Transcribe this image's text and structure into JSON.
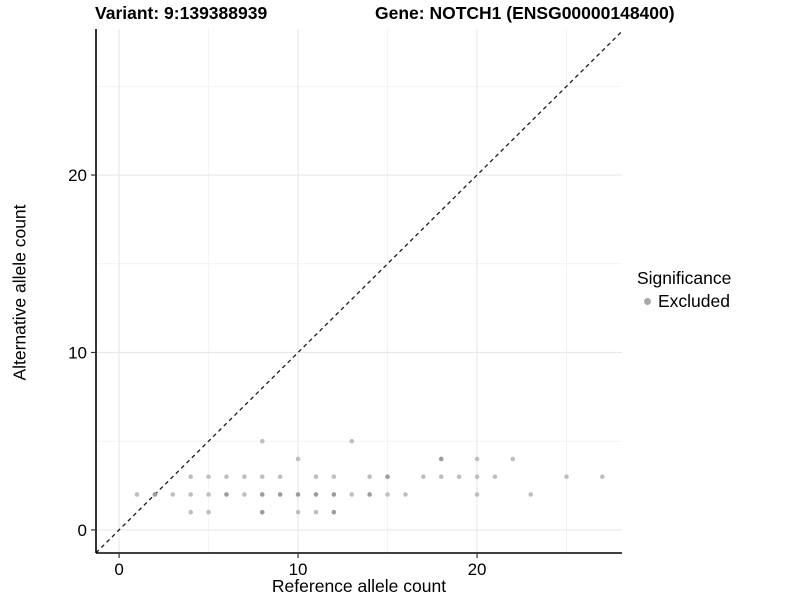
{
  "chart_data": {
    "type": "scatter",
    "titles": {
      "left": "Variant: 9:139388939",
      "right": "Gene: NOTCH1 (ENSG00000148400)"
    },
    "xlabel": "Reference allele count",
    "ylabel": "Alternative allele count",
    "xlim": [
      -1.29,
      28.1
    ],
    "ylim": [
      -1.3,
      28.23
    ],
    "x_ticks": {
      "values": [
        0,
        10,
        20
      ],
      "labels": [
        "0",
        "10",
        "20"
      ]
    },
    "y_ticks": {
      "values": [
        0,
        10,
        20
      ],
      "labels": [
        "0",
        "10",
        "20"
      ]
    },
    "x_minor": [
      5,
      15,
      25
    ],
    "y_minor": [
      5,
      15,
      25
    ],
    "grid": {
      "major_color": "#e8e8e8",
      "minor_color": "#f2f2f2",
      "background": "#ffffff"
    },
    "axis_line_color": "#000000",
    "reference_line": {
      "type": "identity y=x",
      "slope": 1,
      "intercept": 0,
      "style": "dashed",
      "color": "#1a1a1a"
    },
    "legend": {
      "title": "Significance",
      "position": "right",
      "items": [
        {
          "label": "Excluded",
          "color": "#a8a8a8",
          "marker": "circle"
        }
      ]
    },
    "point_style": {
      "radius_px": 2.3,
      "color_light": "#bfbfbf",
      "color_dark": "#9c9c9c"
    },
    "points": [
      {
        "x": 8,
        "y": 5,
        "shade": "light"
      },
      {
        "x": 13,
        "y": 5,
        "shade": "light"
      },
      {
        "x": 10,
        "y": 4,
        "shade": "light"
      },
      {
        "x": 18,
        "y": 4,
        "shade": "dark"
      },
      {
        "x": 20,
        "y": 4,
        "shade": "light"
      },
      {
        "x": 22,
        "y": 4,
        "shade": "light"
      },
      {
        "x": 4,
        "y": 3,
        "shade": "light"
      },
      {
        "x": 5,
        "y": 3,
        "shade": "light"
      },
      {
        "x": 6,
        "y": 3,
        "shade": "light"
      },
      {
        "x": 7,
        "y": 3,
        "shade": "light"
      },
      {
        "x": 8,
        "y": 3,
        "shade": "light"
      },
      {
        "x": 9,
        "y": 3,
        "shade": "light"
      },
      {
        "x": 11,
        "y": 3,
        "shade": "light"
      },
      {
        "x": 12,
        "y": 3,
        "shade": "light"
      },
      {
        "x": 14,
        "y": 3,
        "shade": "light"
      },
      {
        "x": 15,
        "y": 3,
        "shade": "dark"
      },
      {
        "x": 17,
        "y": 3,
        "shade": "light"
      },
      {
        "x": 18,
        "y": 3,
        "shade": "light"
      },
      {
        "x": 19,
        "y": 3,
        "shade": "light"
      },
      {
        "x": 20,
        "y": 3,
        "shade": "light"
      },
      {
        "x": 21,
        "y": 3,
        "shade": "light"
      },
      {
        "x": 25,
        "y": 3,
        "shade": "light"
      },
      {
        "x": 27,
        "y": 3,
        "shade": "light"
      },
      {
        "x": 1,
        "y": 2,
        "shade": "light"
      },
      {
        "x": 2,
        "y": 2,
        "shade": "dark"
      },
      {
        "x": 3,
        "y": 2,
        "shade": "light"
      },
      {
        "x": 4,
        "y": 2,
        "shade": "light"
      },
      {
        "x": 5,
        "y": 2,
        "shade": "light"
      },
      {
        "x": 6,
        "y": 2,
        "shade": "dark"
      },
      {
        "x": 7,
        "y": 2,
        "shade": "light"
      },
      {
        "x": 8,
        "y": 2,
        "shade": "dark"
      },
      {
        "x": 9,
        "y": 2,
        "shade": "dark"
      },
      {
        "x": 10,
        "y": 2,
        "shade": "dark"
      },
      {
        "x": 11,
        "y": 2,
        "shade": "dark"
      },
      {
        "x": 12,
        "y": 2,
        "shade": "dark"
      },
      {
        "x": 13,
        "y": 2,
        "shade": "light"
      },
      {
        "x": 14,
        "y": 2,
        "shade": "dark"
      },
      {
        "x": 15,
        "y": 2,
        "shade": "light"
      },
      {
        "x": 16,
        "y": 2,
        "shade": "light"
      },
      {
        "x": 20,
        "y": 2,
        "shade": "light"
      },
      {
        "x": 23,
        "y": 2,
        "shade": "light"
      },
      {
        "x": 4,
        "y": 1,
        "shade": "light"
      },
      {
        "x": 5,
        "y": 1,
        "shade": "light"
      },
      {
        "x": 8,
        "y": 1,
        "shade": "dark"
      },
      {
        "x": 10,
        "y": 1,
        "shade": "light"
      },
      {
        "x": 11,
        "y": 1,
        "shade": "light"
      },
      {
        "x": 12,
        "y": 1,
        "shade": "dark"
      }
    ]
  }
}
